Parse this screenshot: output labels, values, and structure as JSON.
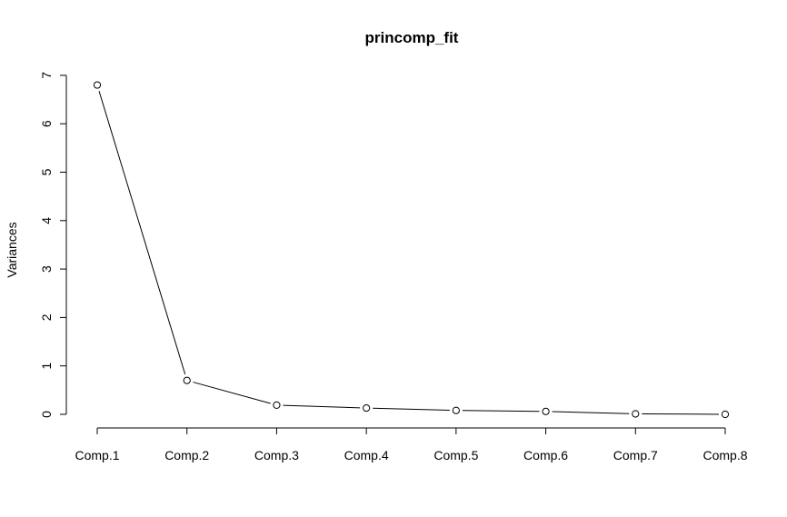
{
  "chart_data": {
    "type": "line",
    "title": "princomp_fit",
    "xlabel": "",
    "ylabel": "Variances",
    "categories": [
      "Comp.1",
      "Comp.2",
      "Comp.3",
      "Comp.4",
      "Comp.5",
      "Comp.6",
      "Comp.7",
      "Comp.8"
    ],
    "values": [
      6.8,
      0.7,
      0.19,
      0.13,
      0.08,
      0.06,
      0.01,
      0.0
    ],
    "yticks": [
      0,
      1,
      2,
      3,
      4,
      5,
      6,
      7
    ],
    "ylim": [
      0,
      7
    ],
    "grid": false,
    "markers": "open-circle",
    "colors": {
      "line": "#000000",
      "marker_fill": "#ffffff"
    }
  }
}
